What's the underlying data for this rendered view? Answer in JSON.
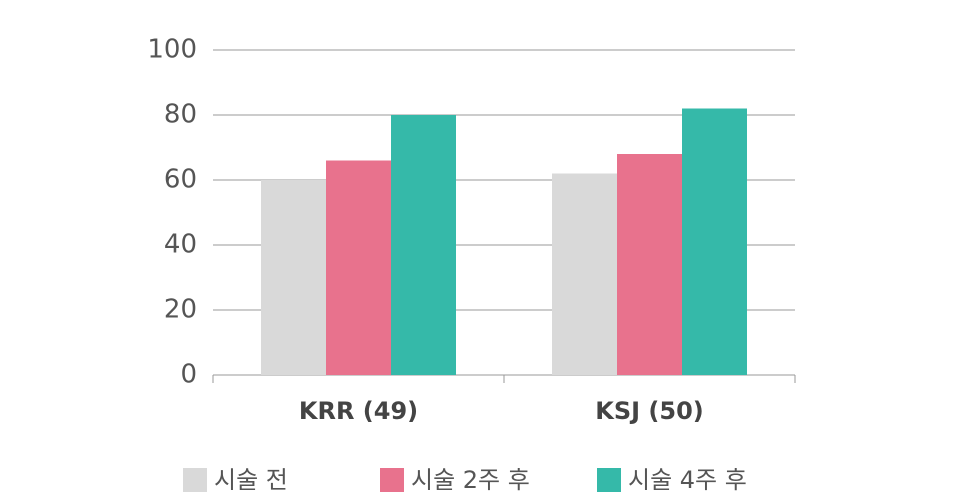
{
  "chart_data": {
    "type": "bar",
    "categories": [
      "KRR (49)",
      "KSJ (50)"
    ],
    "series": [
      {
        "name": "시술 전",
        "color": "#d9d9d9",
        "values": [
          60,
          62
        ]
      },
      {
        "name": "시술 2주 후",
        "color": "#e8728d",
        "values": [
          66,
          68
        ]
      },
      {
        "name": "시술 4주 후",
        "color": "#35b9a9",
        "values": [
          80,
          82
        ]
      }
    ],
    "ylim": [
      0,
      100
    ],
    "yticks": [
      0,
      20,
      40,
      60,
      80,
      100
    ],
    "grid": true,
    "legend": "bottom"
  }
}
